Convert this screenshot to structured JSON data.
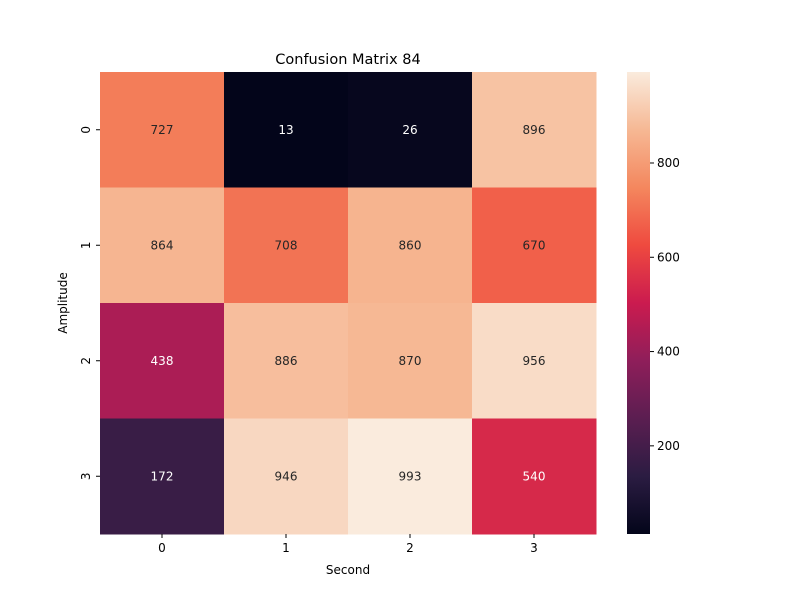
{
  "chart_data": {
    "type": "heatmap",
    "title": "Confusion Matrix 84",
    "xlabel": "Second",
    "ylabel": "Amplitude",
    "x_categories": [
      "0",
      "1",
      "2",
      "3"
    ],
    "y_categories": [
      "0",
      "1",
      "2",
      "3"
    ],
    "values": [
      [
        727,
        13,
        26,
        896
      ],
      [
        864,
        708,
        860,
        670
      ],
      [
        438,
        886,
        870,
        956
      ],
      [
        172,
        946,
        993,
        540
      ]
    ],
    "colorbar": {
      "min": 13,
      "max": 993,
      "ticks": [
        200,
        400,
        600,
        800
      ]
    },
    "colormap": "rocket",
    "grid": false,
    "legend": "colorbar-right"
  }
}
